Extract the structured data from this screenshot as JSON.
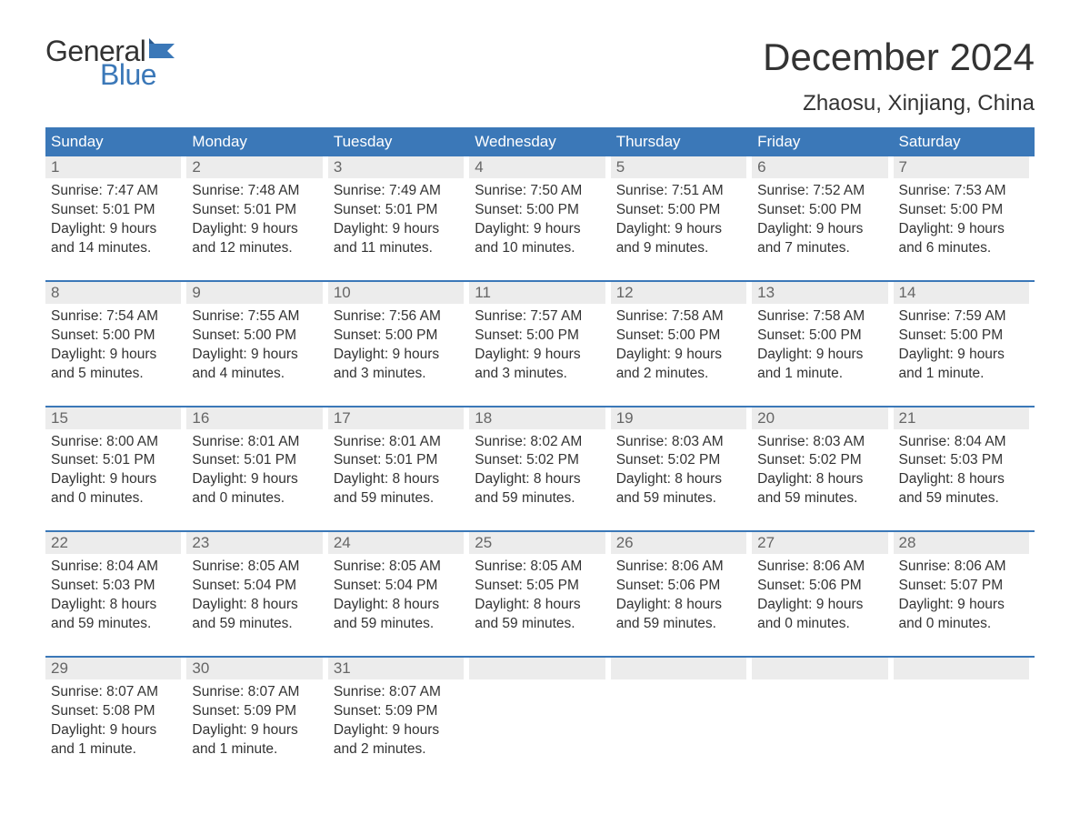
{
  "logo": {
    "word1": "General",
    "word2": "Blue",
    "flag_color": "#3b78b8",
    "text_color_general": "#333333",
    "text_color_blue": "#3b78b8"
  },
  "header": {
    "month_title": "December 2024",
    "location": "Zhaosu, Xinjiang, China"
  },
  "colors": {
    "header_bg": "#3b78b8",
    "header_text": "#ffffff",
    "daynum_bg": "#ececec",
    "daynum_text": "#666666",
    "body_text": "#333333",
    "week_divider": "#3b78b8",
    "page_bg": "#ffffff"
  },
  "fonts": {
    "title_size_pt": 42,
    "location_size_pt": 24,
    "dayheader_size_pt": 17,
    "daynum_size_pt": 17,
    "body_size_pt": 15.5,
    "family": "Arial"
  },
  "day_headers": [
    "Sunday",
    "Monday",
    "Tuesday",
    "Wednesday",
    "Thursday",
    "Friday",
    "Saturday"
  ],
  "weeks": [
    [
      {
        "num": "1",
        "sunrise": "Sunrise: 7:47 AM",
        "sunset": "Sunset: 5:01 PM",
        "dl1": "Daylight: 9 hours",
        "dl2": "and 14 minutes."
      },
      {
        "num": "2",
        "sunrise": "Sunrise: 7:48 AM",
        "sunset": "Sunset: 5:01 PM",
        "dl1": "Daylight: 9 hours",
        "dl2": "and 12 minutes."
      },
      {
        "num": "3",
        "sunrise": "Sunrise: 7:49 AM",
        "sunset": "Sunset: 5:01 PM",
        "dl1": "Daylight: 9 hours",
        "dl2": "and 11 minutes."
      },
      {
        "num": "4",
        "sunrise": "Sunrise: 7:50 AM",
        "sunset": "Sunset: 5:00 PM",
        "dl1": "Daylight: 9 hours",
        "dl2": "and 10 minutes."
      },
      {
        "num": "5",
        "sunrise": "Sunrise: 7:51 AM",
        "sunset": "Sunset: 5:00 PM",
        "dl1": "Daylight: 9 hours",
        "dl2": "and 9 minutes."
      },
      {
        "num": "6",
        "sunrise": "Sunrise: 7:52 AM",
        "sunset": "Sunset: 5:00 PM",
        "dl1": "Daylight: 9 hours",
        "dl2": "and 7 minutes."
      },
      {
        "num": "7",
        "sunrise": "Sunrise: 7:53 AM",
        "sunset": "Sunset: 5:00 PM",
        "dl1": "Daylight: 9 hours",
        "dl2": "and 6 minutes."
      }
    ],
    [
      {
        "num": "8",
        "sunrise": "Sunrise: 7:54 AM",
        "sunset": "Sunset: 5:00 PM",
        "dl1": "Daylight: 9 hours",
        "dl2": "and 5 minutes."
      },
      {
        "num": "9",
        "sunrise": "Sunrise: 7:55 AM",
        "sunset": "Sunset: 5:00 PM",
        "dl1": "Daylight: 9 hours",
        "dl2": "and 4 minutes."
      },
      {
        "num": "10",
        "sunrise": "Sunrise: 7:56 AM",
        "sunset": "Sunset: 5:00 PM",
        "dl1": "Daylight: 9 hours",
        "dl2": "and 3 minutes."
      },
      {
        "num": "11",
        "sunrise": "Sunrise: 7:57 AM",
        "sunset": "Sunset: 5:00 PM",
        "dl1": "Daylight: 9 hours",
        "dl2": "and 3 minutes."
      },
      {
        "num": "12",
        "sunrise": "Sunrise: 7:58 AM",
        "sunset": "Sunset: 5:00 PM",
        "dl1": "Daylight: 9 hours",
        "dl2": "and 2 minutes."
      },
      {
        "num": "13",
        "sunrise": "Sunrise: 7:58 AM",
        "sunset": "Sunset: 5:00 PM",
        "dl1": "Daylight: 9 hours",
        "dl2": "and 1 minute."
      },
      {
        "num": "14",
        "sunrise": "Sunrise: 7:59 AM",
        "sunset": "Sunset: 5:00 PM",
        "dl1": "Daylight: 9 hours",
        "dl2": "and 1 minute."
      }
    ],
    [
      {
        "num": "15",
        "sunrise": "Sunrise: 8:00 AM",
        "sunset": "Sunset: 5:01 PM",
        "dl1": "Daylight: 9 hours",
        "dl2": "and 0 minutes."
      },
      {
        "num": "16",
        "sunrise": "Sunrise: 8:01 AM",
        "sunset": "Sunset: 5:01 PM",
        "dl1": "Daylight: 9 hours",
        "dl2": "and 0 minutes."
      },
      {
        "num": "17",
        "sunrise": "Sunrise: 8:01 AM",
        "sunset": "Sunset: 5:01 PM",
        "dl1": "Daylight: 8 hours",
        "dl2": "and 59 minutes."
      },
      {
        "num": "18",
        "sunrise": "Sunrise: 8:02 AM",
        "sunset": "Sunset: 5:02 PM",
        "dl1": "Daylight: 8 hours",
        "dl2": "and 59 minutes."
      },
      {
        "num": "19",
        "sunrise": "Sunrise: 8:03 AM",
        "sunset": "Sunset: 5:02 PM",
        "dl1": "Daylight: 8 hours",
        "dl2": "and 59 minutes."
      },
      {
        "num": "20",
        "sunrise": "Sunrise: 8:03 AM",
        "sunset": "Sunset: 5:02 PM",
        "dl1": "Daylight: 8 hours",
        "dl2": "and 59 minutes."
      },
      {
        "num": "21",
        "sunrise": "Sunrise: 8:04 AM",
        "sunset": "Sunset: 5:03 PM",
        "dl1": "Daylight: 8 hours",
        "dl2": "and 59 minutes."
      }
    ],
    [
      {
        "num": "22",
        "sunrise": "Sunrise: 8:04 AM",
        "sunset": "Sunset: 5:03 PM",
        "dl1": "Daylight: 8 hours",
        "dl2": "and 59 minutes."
      },
      {
        "num": "23",
        "sunrise": "Sunrise: 8:05 AM",
        "sunset": "Sunset: 5:04 PM",
        "dl1": "Daylight: 8 hours",
        "dl2": "and 59 minutes."
      },
      {
        "num": "24",
        "sunrise": "Sunrise: 8:05 AM",
        "sunset": "Sunset: 5:04 PM",
        "dl1": "Daylight: 8 hours",
        "dl2": "and 59 minutes."
      },
      {
        "num": "25",
        "sunrise": "Sunrise: 8:05 AM",
        "sunset": "Sunset: 5:05 PM",
        "dl1": "Daylight: 8 hours",
        "dl2": "and 59 minutes."
      },
      {
        "num": "26",
        "sunrise": "Sunrise: 8:06 AM",
        "sunset": "Sunset: 5:06 PM",
        "dl1": "Daylight: 8 hours",
        "dl2": "and 59 minutes."
      },
      {
        "num": "27",
        "sunrise": "Sunrise: 8:06 AM",
        "sunset": "Sunset: 5:06 PM",
        "dl1": "Daylight: 9 hours",
        "dl2": "and 0 minutes."
      },
      {
        "num": "28",
        "sunrise": "Sunrise: 8:06 AM",
        "sunset": "Sunset: 5:07 PM",
        "dl1": "Daylight: 9 hours",
        "dl2": "and 0 minutes."
      }
    ],
    [
      {
        "num": "29",
        "sunrise": "Sunrise: 8:07 AM",
        "sunset": "Sunset: 5:08 PM",
        "dl1": "Daylight: 9 hours",
        "dl2": "and 1 minute."
      },
      {
        "num": "30",
        "sunrise": "Sunrise: 8:07 AM",
        "sunset": "Sunset: 5:09 PM",
        "dl1": "Daylight: 9 hours",
        "dl2": "and 1 minute."
      },
      {
        "num": "31",
        "sunrise": "Sunrise: 8:07 AM",
        "sunset": "Sunset: 5:09 PM",
        "dl1": "Daylight: 9 hours",
        "dl2": "and 2 minutes."
      },
      {
        "num": "",
        "sunrise": "",
        "sunset": "",
        "dl1": "",
        "dl2": ""
      },
      {
        "num": "",
        "sunrise": "",
        "sunset": "",
        "dl1": "",
        "dl2": ""
      },
      {
        "num": "",
        "sunrise": "",
        "sunset": "",
        "dl1": "",
        "dl2": ""
      },
      {
        "num": "",
        "sunrise": "",
        "sunset": "",
        "dl1": "",
        "dl2": ""
      }
    ]
  ]
}
